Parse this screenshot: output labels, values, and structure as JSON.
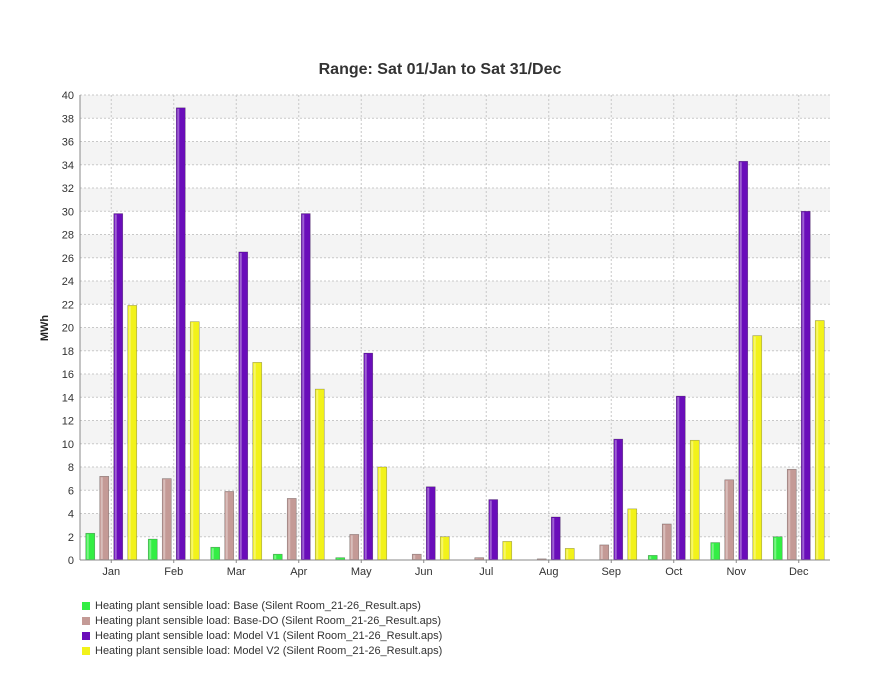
{
  "chart_data": {
    "type": "bar",
    "title": "Range: Sat 01/Jan to Sat 31/Dec",
    "xlabel": "",
    "ylabel": "MWh",
    "ylim": [
      0,
      40
    ],
    "yticks": [
      0,
      2,
      4,
      6,
      8,
      10,
      12,
      14,
      16,
      18,
      20,
      22,
      24,
      26,
      28,
      30,
      32,
      34,
      36,
      38,
      40
    ],
    "grid": true,
    "legend_position": "bottom-left",
    "categories": [
      "Jan",
      "Feb",
      "Mar",
      "Apr",
      "May",
      "Jun",
      "Jul",
      "Aug",
      "Sep",
      "Oct",
      "Nov",
      "Dec"
    ],
    "series": [
      {
        "name": "Heating plant sensible load: Base (Silent Room_21-26_Result.aps)",
        "color": "#33ee44",
        "values": [
          2.3,
          1.8,
          1.1,
          0.5,
          0.2,
          0,
          0,
          0,
          0,
          0.4,
          1.5,
          2.0
        ]
      },
      {
        "name": "Heating plant sensible load: Base-DO (Silent Room_21-26_Result.aps)",
        "color": "#c49a96",
        "values": [
          7.2,
          7.0,
          5.9,
          5.3,
          2.2,
          0.5,
          0.2,
          0.1,
          1.3,
          3.1,
          6.9,
          7.8
        ]
      },
      {
        "name": "Heating plant sensible load: Model V1 (Silent Room_21-26_Result.aps)",
        "color": "#6a0dba",
        "values": [
          29.8,
          38.9,
          26.5,
          29.8,
          17.8,
          6.3,
          5.2,
          3.7,
          10.4,
          14.1,
          34.3,
          30.0
        ]
      },
      {
        "name": "Heating plant sensible load: Model V2 (Silent Room_21-26_Result.aps)",
        "color": "#f2f21a",
        "values": [
          21.9,
          20.5,
          17.0,
          14.7,
          8.0,
          2.0,
          1.6,
          1.0,
          4.4,
          10.3,
          19.3,
          20.6
        ]
      }
    ]
  }
}
